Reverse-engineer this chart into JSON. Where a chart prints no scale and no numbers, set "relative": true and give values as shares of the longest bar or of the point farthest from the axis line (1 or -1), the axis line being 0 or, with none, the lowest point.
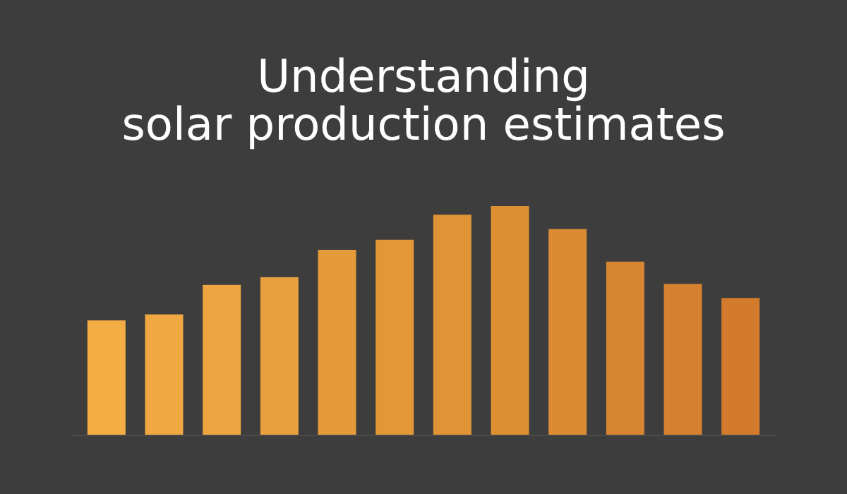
{
  "chart_data": {
    "type": "bar",
    "title": [
      "Understanding",
      "solar production estimates"
    ],
    "relative": true,
    "categories": [
      null,
      null,
      null,
      null,
      null,
      null,
      null,
      null,
      null,
      null,
      null,
      null
    ],
    "values": [
      0.5,
      0.526,
      0.655,
      0.689,
      0.809,
      0.853,
      0.962,
      1,
      0.9,
      0.757,
      0.66,
      0.598
    ],
    "colors": [
      "#f2ad45",
      "#f0a942",
      "#eca540",
      "#e89f3d",
      "#e59b3a",
      "#e39838",
      "#e09436",
      "#dd8f34",
      "#da8b33",
      "#d88531",
      "#d6812f",
      "#d37b2d"
    ],
    "grid": false
  }
}
